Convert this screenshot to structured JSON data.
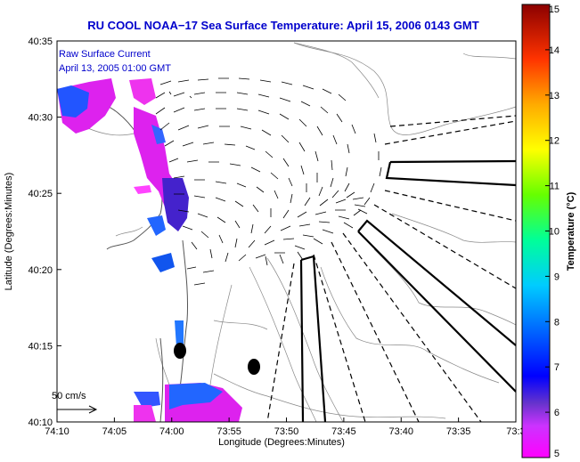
{
  "title": "RU COOL  NOAA−17  Sea Surface Temperature:  April 15, 2006 0143 GMT",
  "legend": {
    "line1": "Raw Surface Current",
    "line2": "April 13, 2005 01:00 GMT",
    "scale_label": "50 cm/s"
  },
  "map": {
    "xlabel": "Longitude (Degrees:Minutes)",
    "ylabel": "Latitude (Degrees:Minutes)",
    "x_ticks": [
      "74:10",
      "74:05",
      "74:00",
      "73:55",
      "73:50",
      "73:45",
      "73:40",
      "73:35",
      "73:3"
    ],
    "y_ticks": [
      "40:35",
      "40:30",
      "40:25",
      "40:20",
      "40:15",
      "40:10"
    ],
    "frame_color": "#000000"
  },
  "colorbar": {
    "label": "Temperature (°C)",
    "ticks": [
      "15",
      "14",
      "13",
      "12",
      "11",
      "10",
      "9",
      "8",
      "7",
      "6",
      "5"
    ],
    "min": 5,
    "max": 15
  }
}
